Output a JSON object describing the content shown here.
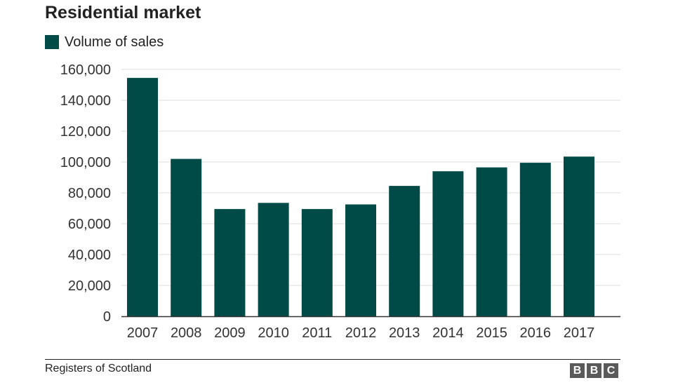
{
  "colors": {
    "bar": "#004b48",
    "grid": "#dcdcdc",
    "axis": "#333333",
    "text": "#222222"
  },
  "chart_data": {
    "type": "bar",
    "title": "Residential market",
    "xlabel": "",
    "ylabel": "",
    "categories": [
      "2007",
      "2008",
      "2009",
      "2010",
      "2011",
      "2012",
      "2013",
      "2014",
      "2015",
      "2016",
      "2017"
    ],
    "series": [
      {
        "name": "Volume of sales",
        "values": [
          154500,
          102000,
          69500,
          73500,
          69500,
          72500,
          84500,
          94000,
          96500,
          99500,
          103500
        ]
      }
    ],
    "ylim": [
      0,
      160000
    ],
    "yticks": [
      0,
      20000,
      40000,
      60000,
      80000,
      100000,
      120000,
      140000,
      160000
    ],
    "ytick_labels": [
      "0",
      "20,000",
      "40,000",
      "60,000",
      "80,000",
      "100,000",
      "120,000",
      "140,000",
      "160,000"
    ],
    "grid": true,
    "legend": "top-left"
  },
  "footer": {
    "source": "Registers of Scotland",
    "logo": [
      "B",
      "B",
      "C"
    ]
  }
}
